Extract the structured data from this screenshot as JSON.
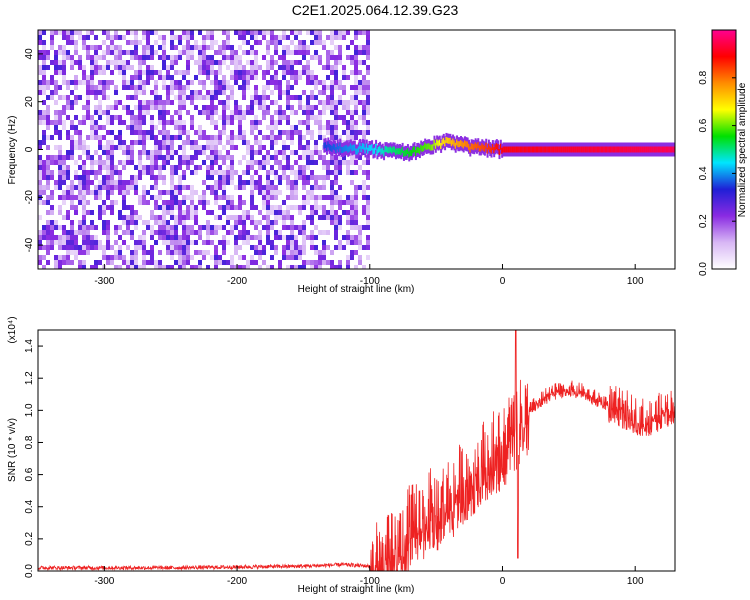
{
  "figure_title": "C2E1.2025.064.12.39.G23",
  "chart_data": [
    {
      "type": "heatmap",
      "title": "C2E1.2025.064.12.39.G23",
      "xlabel": "Height of straight line (km)",
      "ylabel": "Frequency (Hz)",
      "xlim": [
        -350,
        130
      ],
      "ylim": [
        -50,
        50
      ],
      "x_ticks": [
        -300,
        -200,
        -100,
        0,
        100
      ],
      "y_ticks": [
        -40,
        -20,
        0,
        20,
        40
      ],
      "colorbar": {
        "label": "Normalized spectral amplitude",
        "range": [
          0,
          1
        ],
        "ticks": [
          "0.0",
          "0.2",
          "0.4",
          "0.6",
          "0.8"
        ],
        "colors": [
          "#ffffff",
          "#d8b7f5",
          "#8a2be2",
          "#1f1fd6",
          "#00e5ff",
          "#00e000",
          "#ffff00",
          "#ff8c00",
          "#ff0000",
          "#ff0090"
        ]
      },
      "noise_region": {
        "x_range": [
          -350,
          -100
        ],
        "freq_range": [
          -50,
          50
        ],
        "amplitude": 0.15
      },
      "signal_track": [
        {
          "x": -135,
          "freq": 1,
          "amp": 0.35
        },
        {
          "x": -95,
          "freq": 0,
          "amp": 0.45
        },
        {
          "x": -85,
          "freq": -1,
          "amp": 0.5
        },
        {
          "x": -70,
          "freq": -1,
          "amp": 0.55
        },
        {
          "x": -55,
          "freq": 1,
          "amp": 0.6
        },
        {
          "x": -45,
          "freq": 3,
          "amp": 0.7
        },
        {
          "x": -35,
          "freq": 2,
          "amp": 0.75
        },
        {
          "x": -25,
          "freq": 1,
          "amp": 0.8
        },
        {
          "x": -10,
          "freq": 0.5,
          "amp": 0.85
        },
        {
          "x": 0,
          "freq": 0,
          "amp": 0.9
        },
        {
          "x": 130,
          "freq": 0,
          "amp": 0.95
        }
      ]
    },
    {
      "type": "line",
      "xlabel": "Height of straight line (km)",
      "ylabel": "SNR (10 * v/v)",
      "y_scale_label": "(x10⁴)",
      "xlim": [
        -350,
        130
      ],
      "ylim": [
        0,
        1.5
      ],
      "x_ticks": [
        -300,
        -200,
        -100,
        0,
        100
      ],
      "y_ticks": [
        "0.0",
        "0.2",
        "0.4",
        "0.6",
        "0.8",
        "1.0",
        "1.2",
        "1.4"
      ],
      "series": [
        {
          "color": "#ee2222",
          "x": [
            -350,
            -250,
            -150,
            -120,
            -100,
            -90,
            -80,
            -70,
            -60,
            -50,
            -40,
            -30,
            -20,
            -10,
            0,
            10,
            20,
            30,
            40,
            50,
            60,
            70,
            80,
            90,
            100,
            110,
            120,
            130
          ],
          "y": [
            0.02,
            0.02,
            0.03,
            0.04,
            0.03,
            0.06,
            0.15,
            0.28,
            0.35,
            0.4,
            0.48,
            0.55,
            0.65,
            0.72,
            0.8,
            0.9,
            1.0,
            1.08,
            1.12,
            1.14,
            1.12,
            1.08,
            1.05,
            1.02,
            0.98,
            0.95,
            1.0,
            1.05
          ]
        }
      ]
    }
  ]
}
